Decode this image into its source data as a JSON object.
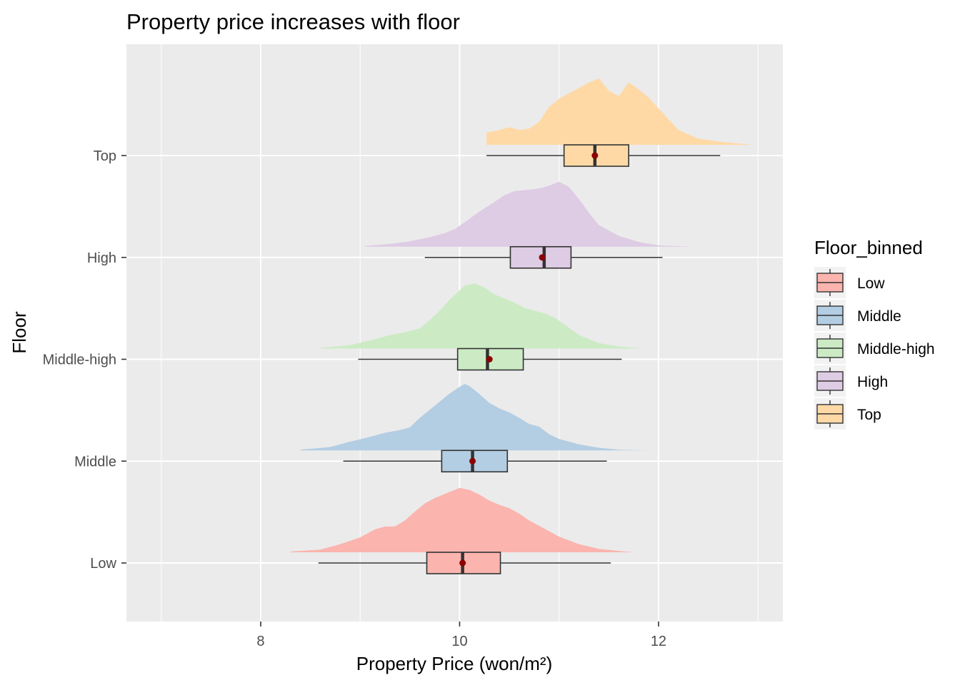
{
  "chart_data": {
    "type": "ridgeline-boxplot",
    "title": "Property price increases with floor",
    "xlabel": "Property Price (won/m²)",
    "ylabel": "Floor",
    "xlim": [
      6.65,
      13.25
    ],
    "x_ticks": [
      8,
      10,
      12
    ],
    "x_minor_ticks": [
      7,
      9,
      11,
      13
    ],
    "grid": true,
    "legend": {
      "title": "Floor_binned",
      "position": "right"
    },
    "categories": [
      "Low",
      "Middle",
      "Middle-high",
      "High",
      "Top"
    ],
    "series": [
      {
        "name": "Low",
        "color": "#FBB4AE",
        "box": {
          "whisker_low": 8.58,
          "q1": 9.67,
          "median": 10.03,
          "q3": 10.41,
          "whisker_high": 11.52
        },
        "mean": 10.03,
        "density": {
          "x": [
            8.3,
            8.6,
            8.8,
            9.0,
            9.15,
            9.25,
            9.35,
            9.45,
            9.55,
            9.65,
            9.75,
            9.85,
            9.95,
            10.0,
            10.1,
            10.2,
            10.3,
            10.4,
            10.5,
            10.6,
            10.7,
            10.8,
            10.9,
            11.0,
            11.2,
            11.4,
            11.6,
            11.75
          ],
          "y": [
            0.01,
            0.04,
            0.12,
            0.22,
            0.34,
            0.38,
            0.38,
            0.47,
            0.6,
            0.72,
            0.8,
            0.86,
            0.92,
            0.95,
            0.92,
            0.85,
            0.76,
            0.7,
            0.65,
            0.57,
            0.47,
            0.39,
            0.31,
            0.23,
            0.12,
            0.05,
            0.02,
            0.0
          ]
        }
      },
      {
        "name": "Middle",
        "color": "#B3CDE3",
        "box": {
          "whisker_low": 8.83,
          "q1": 9.82,
          "median": 10.13,
          "q3": 10.48,
          "whisker_high": 11.48
        },
        "mean": 10.13,
        "density": {
          "x": [
            8.4,
            8.7,
            8.9,
            9.1,
            9.25,
            9.4,
            9.5,
            9.6,
            9.7,
            9.8,
            9.9,
            10.0,
            10.05,
            10.1,
            10.2,
            10.3,
            10.4,
            10.5,
            10.6,
            10.7,
            10.8,
            10.9,
            11.0,
            11.2,
            11.4,
            11.6,
            11.9
          ],
          "y": [
            0.01,
            0.05,
            0.13,
            0.2,
            0.26,
            0.3,
            0.34,
            0.48,
            0.6,
            0.72,
            0.84,
            0.94,
            0.98,
            0.95,
            0.83,
            0.7,
            0.62,
            0.56,
            0.48,
            0.39,
            0.35,
            0.24,
            0.17,
            0.09,
            0.04,
            0.01,
            0.0
          ]
        }
      },
      {
        "name": "Middle-high",
        "color": "#CCEBC5",
        "box": {
          "whisker_low": 8.98,
          "q1": 9.98,
          "median": 10.28,
          "q3": 10.64,
          "whisker_high": 11.63
        },
        "mean": 10.3,
        "density": {
          "x": [
            8.6,
            8.9,
            9.1,
            9.3,
            9.45,
            9.6,
            9.7,
            9.8,
            9.9,
            10.0,
            10.05,
            10.15,
            10.25,
            10.35,
            10.45,
            10.55,
            10.65,
            10.75,
            10.85,
            10.95,
            11.05,
            11.2,
            11.4,
            11.6,
            11.85
          ],
          "y": [
            0.01,
            0.05,
            0.12,
            0.2,
            0.24,
            0.3,
            0.42,
            0.56,
            0.72,
            0.86,
            0.93,
            0.96,
            0.9,
            0.8,
            0.74,
            0.68,
            0.6,
            0.56,
            0.52,
            0.46,
            0.36,
            0.2,
            0.08,
            0.03,
            0.0
          ]
        }
      },
      {
        "name": "High",
        "color": "#DECBE4",
        "box": {
          "whisker_low": 9.65,
          "q1": 10.51,
          "median": 10.85,
          "q3": 11.12,
          "whisker_high": 12.04
        },
        "mean": 10.83,
        "density": {
          "x": [
            9.05,
            9.3,
            9.5,
            9.7,
            9.85,
            9.95,
            10.05,
            10.2,
            10.35,
            10.45,
            10.55,
            10.7,
            10.8,
            10.9,
            11.0,
            11.1,
            11.2,
            11.3,
            11.4,
            11.6,
            11.8,
            12.0,
            12.35
          ],
          "y": [
            0.01,
            0.04,
            0.08,
            0.14,
            0.2,
            0.26,
            0.36,
            0.52,
            0.66,
            0.76,
            0.82,
            0.84,
            0.86,
            0.9,
            0.96,
            0.88,
            0.7,
            0.5,
            0.32,
            0.16,
            0.07,
            0.02,
            0.0
          ]
        }
      },
      {
        "name": "Top",
        "color": "#FED9A6",
        "box": {
          "whisker_low": 10.27,
          "q1": 11.05,
          "median": 11.36,
          "q3": 11.7,
          "whisker_high": 12.62
        },
        "mean": 11.36,
        "density": {
          "x": [
            10.27,
            10.4,
            10.5,
            10.6,
            10.7,
            10.8,
            10.9,
            11.0,
            11.1,
            11.2,
            11.3,
            11.4,
            11.5,
            11.6,
            11.7,
            11.8,
            11.9,
            12.0,
            12.1,
            12.2,
            12.4,
            12.6,
            12.95
          ],
          "y": [
            0.18,
            0.22,
            0.26,
            0.22,
            0.24,
            0.34,
            0.56,
            0.68,
            0.76,
            0.84,
            0.92,
            0.98,
            0.8,
            0.72,
            0.92,
            0.82,
            0.7,
            0.54,
            0.38,
            0.22,
            0.09,
            0.05,
            0.0
          ]
        }
      }
    ],
    "mean_point_color": "#8B0000"
  }
}
